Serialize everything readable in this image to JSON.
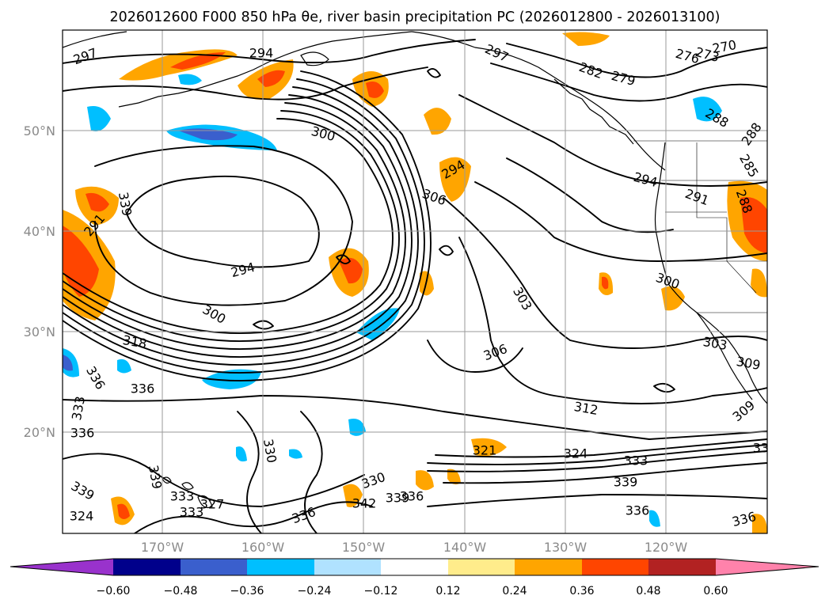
{
  "title": "2026012600 F000 850 hPa θe, river basin precipitation PC (2026012800 - 2026013100)",
  "map": {
    "lat_ticks": [
      "50°N",
      "40°N",
      "30°N",
      "20°N"
    ],
    "lon_ticks": [
      "170°W",
      "160°W",
      "150°W",
      "140°W",
      "130°W",
      "120°W"
    ]
  },
  "colorbar": {
    "colors": [
      "#9932cc",
      "#00008b",
      "#3a5fcd",
      "#00bfff",
      "#b0e2ff",
      "#ffffff",
      "#ffec8b",
      "#ffa500",
      "#ff4500",
      "#b22222",
      "#ff82ab"
    ],
    "tick_labels": [
      "−0.60",
      "−0.48",
      "−0.36",
      "−0.24",
      "−0.12",
      "0.12",
      "0.24",
      "0.36",
      "0.48",
      "0.60"
    ]
  },
  "contour_labels": [
    "297",
    "294",
    "270",
    "276",
    "273",
    "297",
    "282",
    "279",
    "288",
    "300",
    "294",
    "285",
    "288",
    "306",
    "294",
    "291",
    "288",
    "291",
    "294",
    "300",
    "300",
    "303",
    "306",
    "303",
    "312",
    "309",
    "318",
    "309",
    "336",
    "336",
    "333",
    "336",
    "330",
    "321",
    "324",
    "333",
    "339",
    "330",
    "336",
    "339",
    "342",
    "339",
    "339",
    "333",
    "327",
    "333",
    "336",
    "339",
    "324",
    "336",
    "336",
    "339"
  ]
}
